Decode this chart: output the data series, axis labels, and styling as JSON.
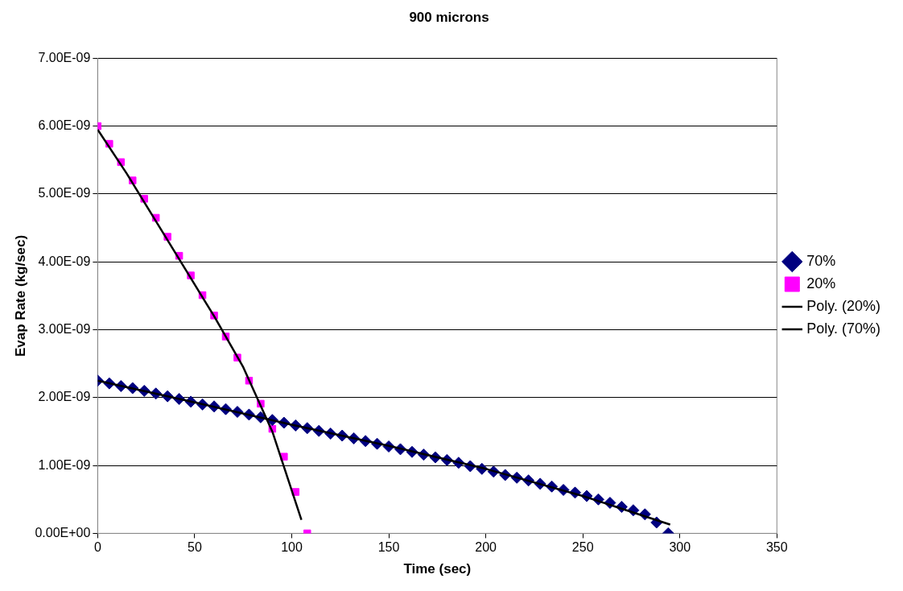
{
  "chart_data": {
    "type": "scatter",
    "title": "900 microns",
    "xlabel": "Time (sec)",
    "ylabel": "Evap Rate (kg/sec)",
    "xlim": [
      0,
      350
    ],
    "xticks": [
      0,
      50,
      100,
      150,
      200,
      250,
      300,
      350
    ],
    "ylim": [
      0,
      7e-09
    ],
    "yticks": [
      {
        "value": 0,
        "label": "0.00E+00"
      },
      {
        "value": 1e-09,
        "label": "1.00E-09"
      },
      {
        "value": 2e-09,
        "label": "2.00E-09"
      },
      {
        "value": 3e-09,
        "label": "3.00E-09"
      },
      {
        "value": 4e-09,
        "label": "4.00E-09"
      },
      {
        "value": 5e-09,
        "label": "5.00E-09"
      },
      {
        "value": 6e-09,
        "label": "6.00E-09"
      },
      {
        "value": 7e-09,
        "label": "7.00E-09"
      }
    ],
    "grid": "y",
    "legend": "right",
    "series": [
      {
        "name": "70%",
        "type": "scatter",
        "marker": "diamond",
        "color": "#000080",
        "x": [
          0,
          6,
          12,
          18,
          24,
          30,
          36,
          42,
          48,
          54,
          60,
          66,
          72,
          78,
          84,
          90,
          96,
          102,
          108,
          114,
          120,
          126,
          132,
          138,
          144,
          150,
          156,
          162,
          168,
          174,
          180,
          186,
          192,
          198,
          204,
          210,
          216,
          222,
          228,
          234,
          240,
          246,
          252,
          258,
          264,
          270,
          276,
          282,
          288,
          294
        ],
        "values": [
          2.25e-09,
          2.21e-09,
          2.17e-09,
          2.14e-09,
          2.1e-09,
          2.06e-09,
          2.02e-09,
          1.98e-09,
          1.94e-09,
          1.9e-09,
          1.87e-09,
          1.83e-09,
          1.79e-09,
          1.75e-09,
          1.71e-09,
          1.67e-09,
          1.63e-09,
          1.59e-09,
          1.55e-09,
          1.51e-09,
          1.47e-09,
          1.44e-09,
          1.4e-09,
          1.36e-09,
          1.32e-09,
          1.28e-09,
          1.24e-09,
          1.2e-09,
          1.16e-09,
          1.12e-09,
          1.08e-09,
          1.04e-09,
          9.9e-10,
          9.5e-10,
          9.1e-10,
          8.6e-10,
          8.2e-10,
          7.8e-10,
          7.3e-10,
          6.9e-10,
          6.4e-10,
          6e-10,
          5.5e-10,
          5e-10,
          4.5e-10,
          3.9e-10,
          3.4e-10,
          2.8e-10,
          1.6e-10,
          0
        ]
      },
      {
        "name": "20%",
        "type": "scatter",
        "marker": "square",
        "color": "#ff00ff",
        "x": [
          0,
          6,
          12,
          18,
          24,
          30,
          36,
          42,
          48,
          54,
          60,
          66,
          72,
          78,
          84,
          90,
          96,
          102,
          108
        ],
        "values": [
          6e-09,
          5.74e-09,
          5.47e-09,
          5.2e-09,
          4.93e-09,
          4.65e-09,
          4.37e-09,
          4.09e-09,
          3.8e-09,
          3.51e-09,
          3.21e-09,
          2.9e-09,
          2.59e-09,
          2.25e-09,
          1.91e-09,
          1.54e-09,
          1.13e-09,
          6.1e-10,
          0
        ]
      },
      {
        "name": "Poly. (20%)",
        "type": "line",
        "marker": "none",
        "color": "#000000",
        "x": [
          0,
          15,
          30,
          45,
          60,
          75,
          90,
          105
        ],
        "values": [
          5.95e-09,
          5.3e-09,
          4.6e-09,
          3.9e-09,
          3.2e-09,
          2.45e-09,
          1.5e-09,
          2e-10
        ]
      },
      {
        "name": "Poly. (70%)",
        "type": "line",
        "marker": "none",
        "color": "#000000",
        "x": [
          0,
          50,
          100,
          150,
          200,
          250,
          295
        ],
        "values": [
          2.25e-09,
          1.93e-09,
          1.6e-09,
          1.29e-09,
          9.5e-10,
          5.5e-10,
          1.3e-10
        ]
      }
    ]
  }
}
